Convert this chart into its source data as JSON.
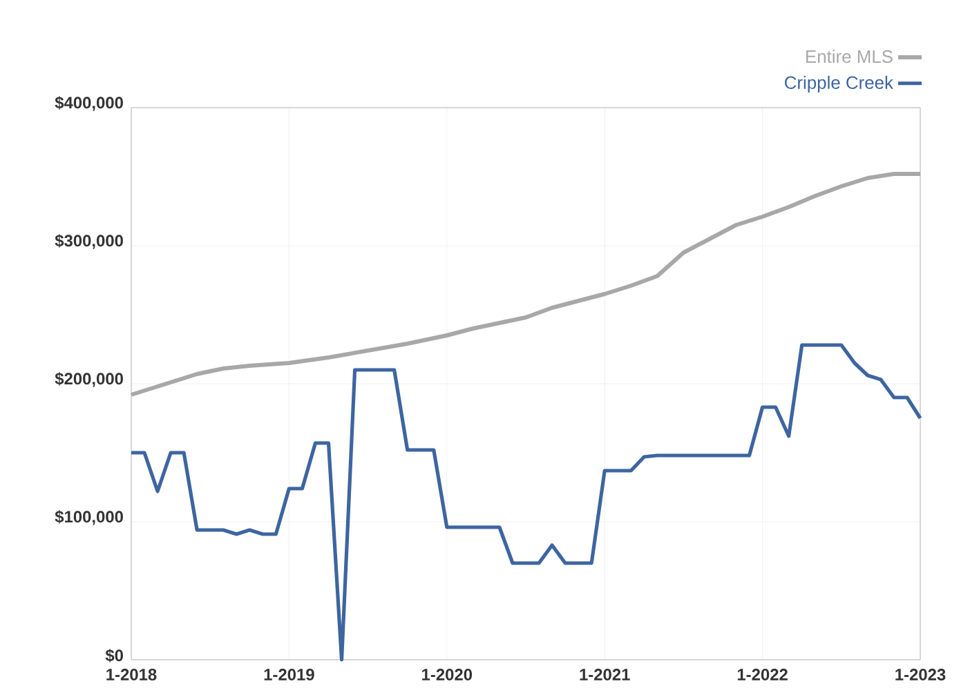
{
  "chart_data": {
    "type": "line",
    "xlim": [
      "2018-01",
      "2023-01"
    ],
    "xticks": [
      {
        "value": "2018-01",
        "label": "1-2018"
      },
      {
        "value": "2019-01",
        "label": "1-2019"
      },
      {
        "value": "2020-01",
        "label": "1-2020"
      },
      {
        "value": "2021-01",
        "label": "1-2021"
      },
      {
        "value": "2022-01",
        "label": "1-2022"
      },
      {
        "value": "2023-01",
        "label": "1-2023"
      }
    ],
    "ylim": [
      0,
      400000
    ],
    "yticks": [
      {
        "value": 0,
        "label": "$0"
      },
      {
        "value": 100000,
        "label": "$100,000"
      },
      {
        "value": 200000,
        "label": "$200,000"
      },
      {
        "value": 300000,
        "label": "$300,000"
      },
      {
        "value": 400000,
        "label": "$400,000"
      }
    ],
    "grid": true,
    "legend": "top right",
    "marker": "none",
    "line_style": "solid",
    "series": [
      {
        "name": "Entire MLS",
        "color": "#a8a8a8",
        "x": [
          "2018-01",
          "2018-04",
          "2018-06",
          "2018-08",
          "2018-10",
          "2019-01",
          "2019-04",
          "2019-07",
          "2019-10",
          "2020-01",
          "2020-03",
          "2020-05",
          "2020-07",
          "2020-09",
          "2020-11",
          "2021-01",
          "2021-03",
          "2021-05",
          "2021-07",
          "2021-09",
          "2021-11",
          "2022-01",
          "2022-03",
          "2022-05",
          "2022-07",
          "2022-09",
          "2022-11",
          "2023-01"
        ],
        "values": [
          192000,
          201000,
          207000,
          211000,
          213000,
          215000,
          219000,
          224000,
          229000,
          235000,
          240000,
          244000,
          248000,
          255000,
          260000,
          265000,
          271000,
          278000,
          295000,
          305000,
          315000,
          321000,
          328000,
          336000,
          343000,
          349000,
          352000,
          352000
        ]
      },
      {
        "name": "Cripple Creek",
        "color": "#3d65a0",
        "x": [
          "2018-01",
          "2018-02",
          "2018-03",
          "2018-04",
          "2018-05",
          "2018-06",
          "2018-07",
          "2018-08",
          "2018-09",
          "2018-10",
          "2018-11",
          "2018-12",
          "2019-01",
          "2019-02",
          "2019-03",
          "2019-04",
          "2019-05",
          "2019-06",
          "2019-07",
          "2019-08",
          "2019-09",
          "2019-10",
          "2019-11",
          "2019-12",
          "2020-01",
          "2020-02",
          "2020-03",
          "2020-04",
          "2020-05",
          "2020-06",
          "2020-07",
          "2020-08",
          "2020-09",
          "2020-10",
          "2020-11",
          "2020-12",
          "2021-01",
          "2021-02",
          "2021-03",
          "2021-04",
          "2021-05",
          "2021-06",
          "2021-07",
          "2021-08",
          "2021-09",
          "2021-10",
          "2021-11",
          "2021-12",
          "2022-01",
          "2022-02",
          "2022-03",
          "2022-04",
          "2022-05",
          "2022-06",
          "2022-07",
          "2022-08",
          "2022-09",
          "2022-10",
          "2022-11",
          "2022-12",
          "2023-01"
        ],
        "values": [
          150000,
          150000,
          122000,
          150000,
          150000,
          94000,
          94000,
          94000,
          91000,
          94000,
          91000,
          91000,
          124000,
          124000,
          157000,
          157000,
          0,
          210000,
          210000,
          210000,
          210000,
          152000,
          152000,
          152000,
          96000,
          96000,
          96000,
          96000,
          96000,
          70000,
          70000,
          70000,
          83000,
          70000,
          70000,
          70000,
          137000,
          137000,
          137000,
          147000,
          148000,
          148000,
          148000,
          148000,
          148000,
          148000,
          148000,
          148000,
          183000,
          183000,
          162000,
          228000,
          228000,
          228000,
          228000,
          215000,
          206000,
          203000,
          190000,
          190000,
          175000
        ]
      }
    ]
  }
}
